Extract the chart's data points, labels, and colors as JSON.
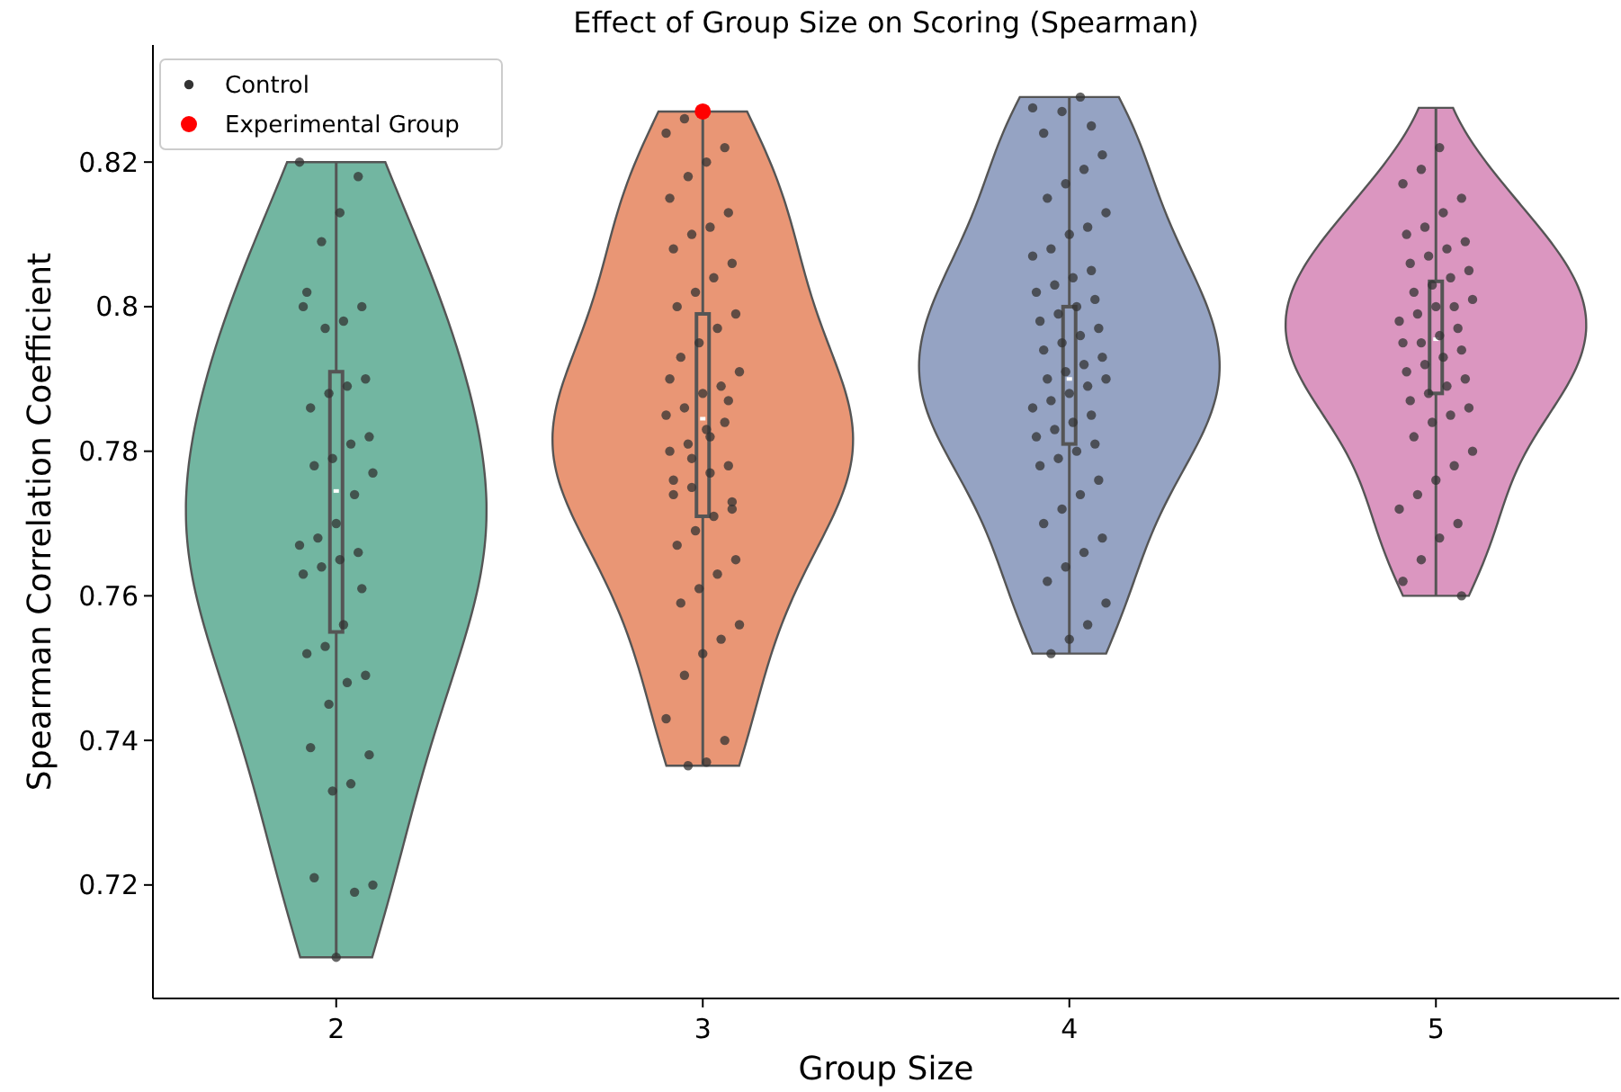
{
  "chart_data": {
    "type": "box",
    "title": "Effect of Group Size on Scoring (Spearman)",
    "xlabel": "Group Size",
    "ylabel": "Spearman Correlation Coefficient",
    "categories": [
      "2",
      "3",
      "4",
      "5"
    ],
    "colors": [
      "#72b6a1",
      "#e99675",
      "#95a3c3",
      "#db96c0"
    ],
    "boxes": [
      {
        "low": 0.71,
        "q1": 0.755,
        "median": 0.7745,
        "q3": 0.791,
        "high": 0.82
      },
      {
        "low": 0.7365,
        "q1": 0.771,
        "median": 0.7845,
        "q3": 0.799,
        "high": 0.827
      },
      {
        "low": 0.752,
        "q1": 0.781,
        "median": 0.79,
        "q3": 0.8,
        "high": 0.829
      },
      {
        "low": 0.76,
        "q1": 0.788,
        "median": 0.7955,
        "q3": 0.8035,
        "high": 0.8275
      }
    ],
    "ylim": [
      0.7043,
      0.8362
    ],
    "yticks": [
      0.72,
      0.74,
      0.76,
      0.78,
      0.8,
      0.82
    ],
    "grid": false,
    "legend": "top left",
    "marker": "circle",
    "series": [
      {
        "type": "scatter",
        "name": "Control",
        "color": "#333333",
        "x": [
          "2",
          "2",
          "2",
          "2",
          "2",
          "2",
          "2",
          "2",
          "2",
          "2",
          "2",
          "2",
          "2",
          "2",
          "2",
          "2",
          "2",
          "2",
          "2",
          "2",
          "2",
          "2",
          "2",
          "2",
          "2",
          "2",
          "2",
          "2",
          "2",
          "2",
          "2",
          "2",
          "2",
          "2",
          "2",
          "2",
          "2",
          "2",
          "2",
          "2",
          "2",
          "3",
          "3",
          "3",
          "3",
          "3",
          "3",
          "3",
          "3",
          "3",
          "3",
          "3",
          "3",
          "3",
          "3",
          "3",
          "3",
          "3",
          "3",
          "3",
          "3",
          "3",
          "3",
          "3",
          "3",
          "3",
          "3",
          "3",
          "3",
          "3",
          "3",
          "3",
          "3",
          "3",
          "3",
          "3",
          "3",
          "3",
          "3",
          "3",
          "3",
          "3",
          "3",
          "3",
          "3",
          "3",
          "3",
          "3",
          "3",
          "3",
          "3",
          "3",
          "3",
          "3",
          "4",
          "4",
          "4",
          "4",
          "4",
          "4",
          "4",
          "4",
          "4",
          "4",
          "4",
          "4",
          "4",
          "4",
          "4",
          "4",
          "4",
          "4",
          "4",
          "4",
          "4",
          "4",
          "4",
          "4",
          "4",
          "4",
          "4",
          "4",
          "4",
          "4",
          "4",
          "4",
          "4",
          "4",
          "4",
          "4",
          "4",
          "4",
          "4",
          "4",
          "4",
          "4",
          "4",
          "4",
          "4",
          "4",
          "4",
          "4",
          "4",
          "4",
          "4",
          "4",
          "4",
          "4",
          "4",
          "5",
          "5",
          "5",
          "5",
          "5",
          "5",
          "5",
          "5",
          "5",
          "5",
          "5",
          "5",
          "5",
          "5",
          "5",
          "5",
          "5",
          "5",
          "5",
          "5",
          "5",
          "5",
          "5",
          "5",
          "5",
          "5",
          "5",
          "5",
          "5",
          "5",
          "5",
          "5",
          "5",
          "5",
          "5",
          "5",
          "5",
          "5",
          "5",
          "5",
          "5",
          "5",
          "5",
          "5",
          "5",
          "5"
        ],
        "values": [
          0.82,
          0.818,
          0.813,
          0.809,
          0.8,
          0.8,
          0.798,
          0.797,
          0.802,
          0.79,
          0.789,
          0.788,
          0.786,
          0.782,
          0.781,
          0.779,
          0.778,
          0.777,
          0.774,
          0.77,
          0.768,
          0.767,
          0.766,
          0.765,
          0.764,
          0.763,
          0.761,
          0.756,
          0.753,
          0.752,
          0.749,
          0.748,
          0.745,
          0.739,
          0.738,
          0.734,
          0.733,
          0.721,
          0.72,
          0.719,
          0.71,
          0.826,
          0.824,
          0.822,
          0.82,
          0.818,
          0.815,
          0.813,
          0.811,
          0.81,
          0.808,
          0.806,
          0.804,
          0.802,
          0.8,
          0.799,
          0.797,
          0.795,
          0.793,
          0.791,
          0.789,
          0.788,
          0.786,
          0.785,
          0.784,
          0.783,
          0.781,
          0.78,
          0.778,
          0.777,
          0.775,
          0.774,
          0.773,
          0.771,
          0.769,
          0.767,
          0.765,
          0.763,
          0.761,
          0.759,
          0.756,
          0.754,
          0.752,
          0.749,
          0.743,
          0.74,
          0.737,
          0.7365,
          0.79,
          0.787,
          0.782,
          0.779,
          0.776,
          0.772,
          0.829,
          0.827,
          0.824,
          0.821,
          0.819,
          0.817,
          0.815,
          0.813,
          0.811,
          0.81,
          0.808,
          0.807,
          0.805,
          0.804,
          0.803,
          0.802,
          0.801,
          0.8,
          0.799,
          0.798,
          0.797,
          0.796,
          0.795,
          0.794,
          0.793,
          0.792,
          0.791,
          0.79,
          0.79,
          0.789,
          0.788,
          0.787,
          0.786,
          0.785,
          0.784,
          0.783,
          0.782,
          0.781,
          0.78,
          0.779,
          0.778,
          0.776,
          0.774,
          0.772,
          0.77,
          0.768,
          0.766,
          0.764,
          0.762,
          0.759,
          0.756,
          0.754,
          0.752,
          0.8275,
          0.825,
          0.822,
          0.819,
          0.817,
          0.815,
          0.813,
          0.811,
          0.81,
          0.809,
          0.808,
          0.807,
          0.806,
          0.805,
          0.804,
          0.803,
          0.802,
          0.801,
          0.8,
          0.8,
          0.799,
          0.798,
          0.797,
          0.796,
          0.795,
          0.795,
          0.794,
          0.793,
          0.792,
          0.791,
          0.79,
          0.789,
          0.788,
          0.787,
          0.786,
          0.785,
          0.784,
          0.782,
          0.78,
          0.778,
          0.776,
          0.774,
          0.772,
          0.77,
          0.768,
          0.765,
          0.762,
          0.76
        ]
      },
      {
        "type": "scatter",
        "name": "Experimental Group",
        "color": "#ff0000",
        "x": [
          "3"
        ],
        "values": [
          0.827
        ]
      }
    ]
  }
}
